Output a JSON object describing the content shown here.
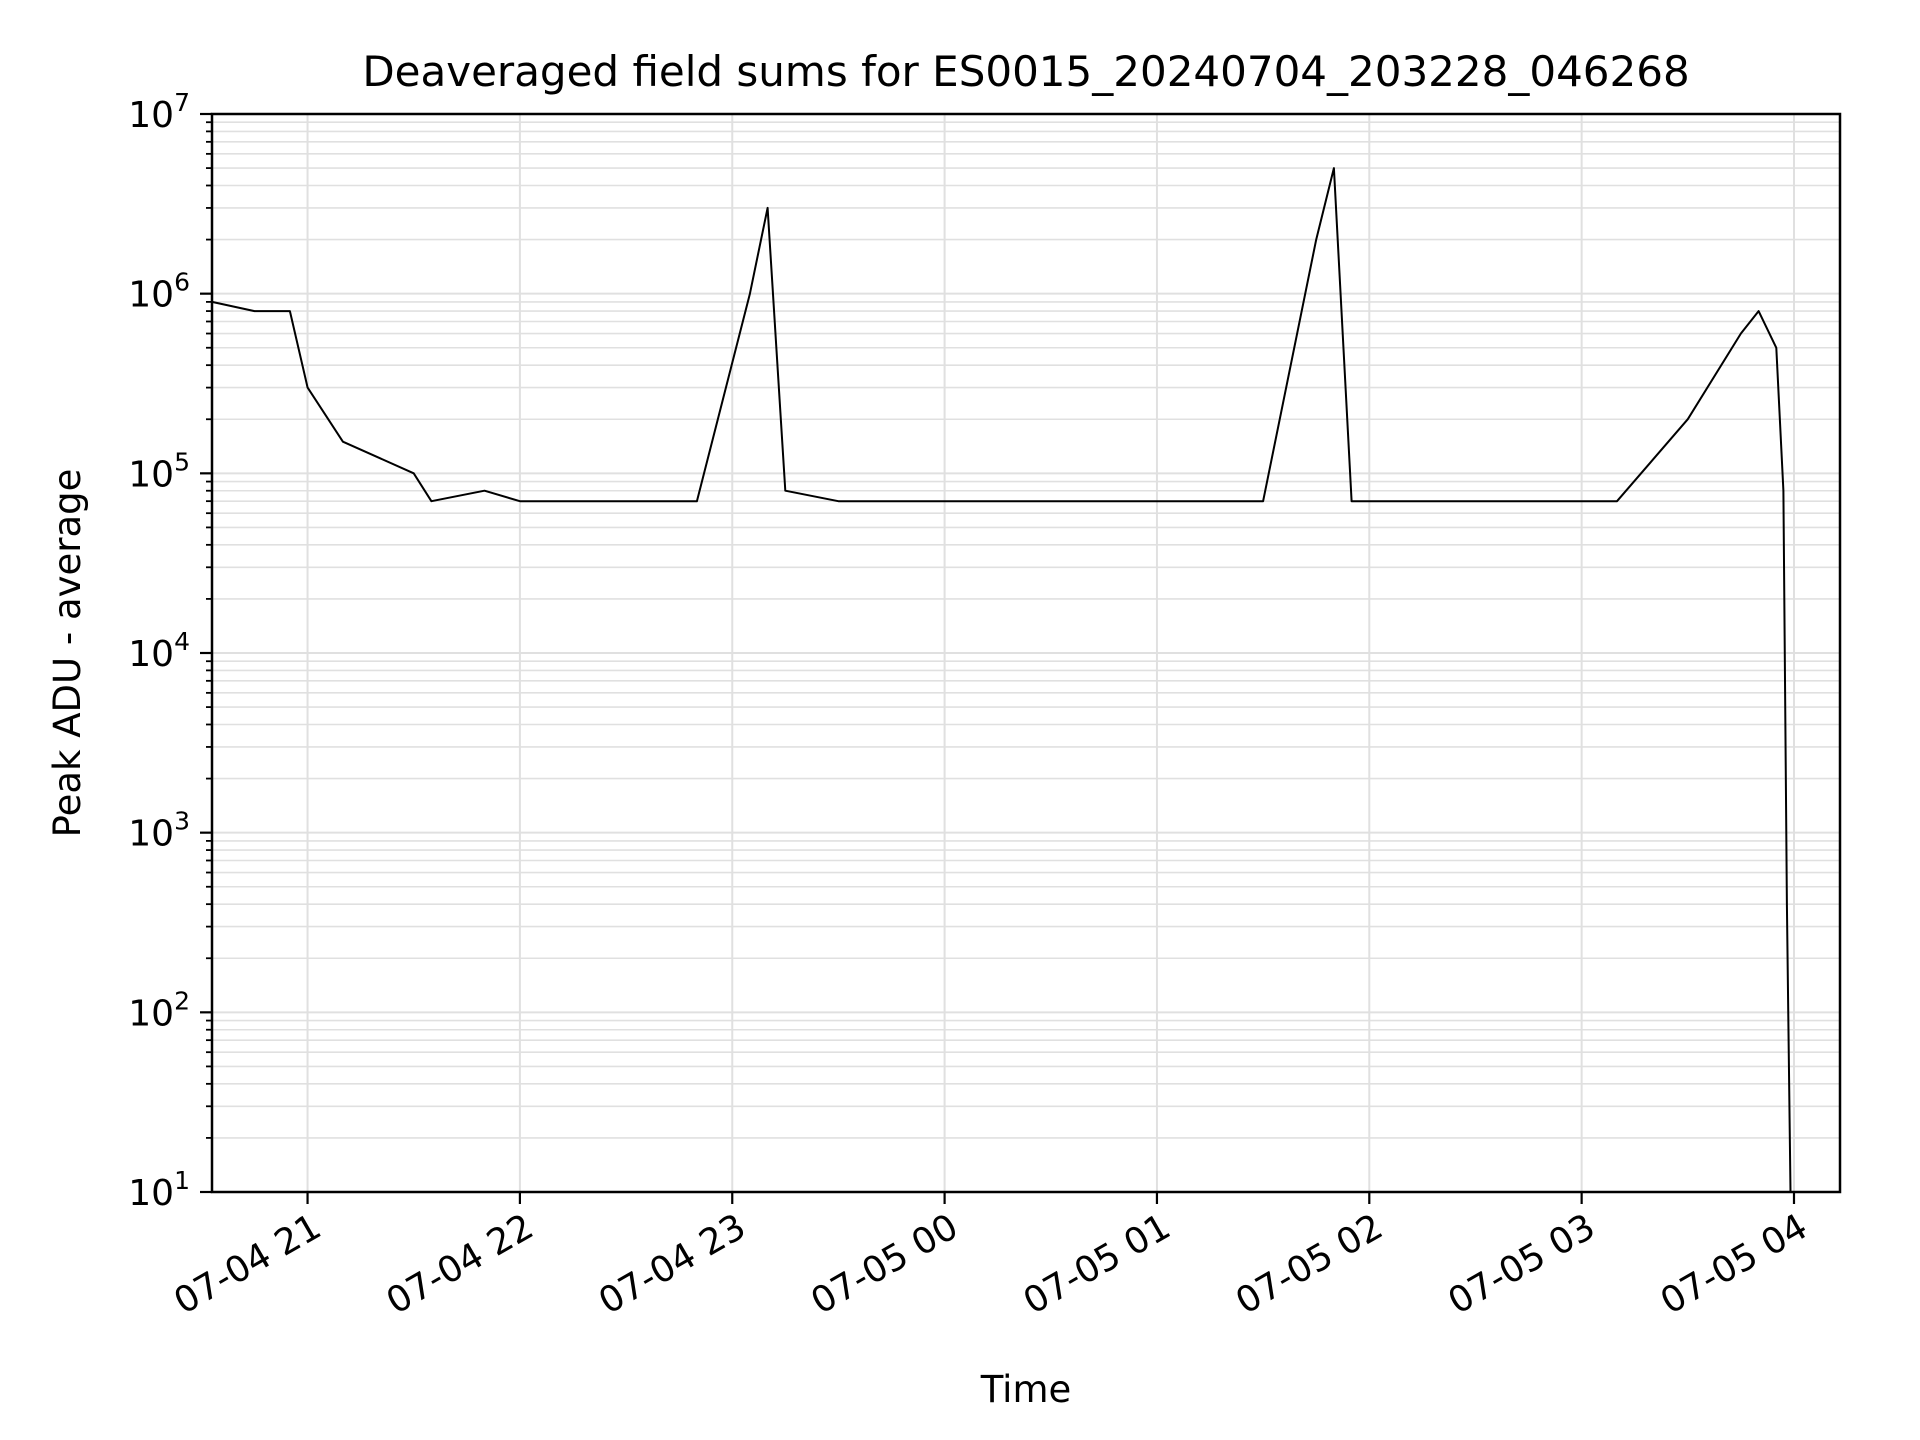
{
  "chart_data": {
    "type": "line",
    "title": "Deaveraged field sums for ES0015_20240704_203228_046268",
    "xlabel": "Time",
    "ylabel": "Peak ADU - average",
    "yscale": "log",
    "ylim": [
      10,
      10000000
    ],
    "xlim": [
      "2024-07-04 20:33",
      "2024-07-05 04:13"
    ],
    "grid": true,
    "line_color": "#000000",
    "grid_color": "#e0e0e0",
    "x_ticks": [
      {
        "t": "2024-07-04 21:00",
        "label": "07-04 21"
      },
      {
        "t": "2024-07-04 22:00",
        "label": "07-04 22"
      },
      {
        "t": "2024-07-04 23:00",
        "label": "07-04 23"
      },
      {
        "t": "2024-07-05 00:00",
        "label": "07-05 00"
      },
      {
        "t": "2024-07-05 01:00",
        "label": "07-05 01"
      },
      {
        "t": "2024-07-05 02:00",
        "label": "07-05 02"
      },
      {
        "t": "2024-07-05 03:00",
        "label": "07-05 03"
      },
      {
        "t": "2024-07-05 04:00",
        "label": "07-05 04"
      }
    ],
    "y_ticks": [
      {
        "value": 10,
        "base": "10",
        "exp": "1"
      },
      {
        "value": 100,
        "base": "10",
        "exp": "2"
      },
      {
        "value": 1000,
        "base": "10",
        "exp": "3"
      },
      {
        "value": 10000,
        "base": "10",
        "exp": "4"
      },
      {
        "value": 100000,
        "base": "10",
        "exp": "5"
      },
      {
        "value": 1000000,
        "base": "10",
        "exp": "6"
      },
      {
        "value": 10000000,
        "base": "10",
        "exp": "7"
      }
    ],
    "series": [
      {
        "x": [
          "2024-07-04 20:33",
          "2024-07-04 20:45",
          "2024-07-04 20:55",
          "2024-07-04 21:00",
          "2024-07-04 21:10",
          "2024-07-04 21:30",
          "2024-07-04 21:35",
          "2024-07-04 21:50",
          "2024-07-04 22:00",
          "2024-07-04 22:30",
          "2024-07-04 22:50",
          "2024-07-04 23:05",
          "2024-07-04 23:10",
          "2024-07-04 23:15",
          "2024-07-04 23:30",
          "2024-07-05 00:00",
          "2024-07-05 00:30",
          "2024-07-05 01:00",
          "2024-07-05 01:30",
          "2024-07-05 01:45",
          "2024-07-05 01:50",
          "2024-07-05 01:55",
          "2024-07-05 02:30",
          "2024-07-05 03:00",
          "2024-07-05 03:10",
          "2024-07-05 03:30",
          "2024-07-05 03:45",
          "2024-07-05 03:50",
          "2024-07-05 03:55",
          "2024-07-05 03:57",
          "2024-07-05 03:58",
          "2024-07-05 03:59"
        ],
        "y": [
          900000,
          800000,
          800000,
          300000,
          150000,
          100000,
          70000,
          80000,
          70000,
          70000,
          70000,
          1000000,
          3000000,
          80000,
          70000,
          70000,
          70000,
          70000,
          70000,
          2000000,
          5000000,
          70000,
          70000,
          70000,
          70000,
          200000,
          600000,
          800000,
          500000,
          80000,
          400,
          10
        ]
      }
    ]
  }
}
